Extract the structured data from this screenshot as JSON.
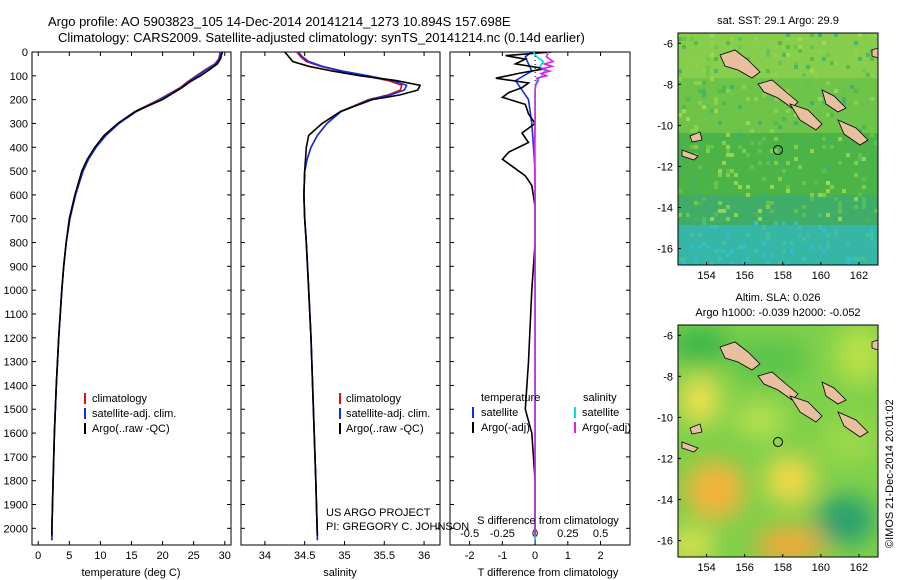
{
  "header": {
    "line1": "Argo profile: AO 5903823_105 14-Dec-2014 20141214_1273 10.894S 157.698E",
    "line2": "Climatology: CARS2009. Satellite-adjusted climatology: synTS_20141214.nc (0.14d earlier)"
  },
  "colors": {
    "clim": "#e01010",
    "sat": "#1030e0",
    "argo": "#000000",
    "sal_sat": "#00e0e0",
    "sal_argo": "#e020e0",
    "coast_fill": "#e8c0a0"
  },
  "chart_data": [
    {
      "id": "temperature",
      "type": "line",
      "xlabel": "temperature (deg C)",
      "ylabel": "depth",
      "xlim": [
        -1,
        31
      ],
      "ylim": [
        2070,
        0
      ],
      "xticks": [
        0,
        5,
        10,
        15,
        20,
        25,
        30
      ],
      "yticks": [
        0,
        100,
        200,
        300,
        400,
        500,
        600,
        700,
        800,
        900,
        1000,
        1100,
        1200,
        1300,
        1400,
        1500,
        1600,
        1700,
        1800,
        1900,
        2000
      ],
      "legend": [
        "climatology",
        "satellite-adj. clim.",
        "Argo(..raw -QC)"
      ],
      "series": [
        {
          "name": "climatology",
          "depth": [
            0,
            10,
            30,
            50,
            75,
            100,
            125,
            150,
            200,
            250,
            300,
            350,
            400,
            450,
            500,
            600,
            700,
            800,
            900,
            1000,
            1200,
            1400,
            1600,
            1800,
            2000,
            2050
          ],
          "values": [
            29.2,
            29.2,
            29.0,
            28.4,
            26.8,
            25.4,
            24.0,
            22.8,
            19.4,
            15.6,
            12.9,
            10.8,
            9.2,
            8.0,
            7.2,
            6.0,
            5.1,
            4.5,
            4.1,
            3.8,
            3.3,
            2.9,
            2.6,
            2.4,
            2.2,
            2.2
          ]
        },
        {
          "name": "satellite-adj. clim.",
          "depth": [
            0,
            10,
            30,
            50,
            75,
            100,
            125,
            150,
            200,
            250,
            300,
            350,
            400,
            450,
            500,
            600,
            700,
            800,
            900,
            1000,
            1200,
            1400,
            1600,
            1800,
            2000,
            2050
          ],
          "values": [
            29.4,
            29.3,
            29.1,
            28.5,
            27.0,
            25.6,
            24.2,
            23.0,
            19.6,
            15.8,
            13.0,
            10.9,
            9.3,
            8.1,
            7.2,
            6.0,
            5.1,
            4.5,
            4.1,
            3.8,
            3.3,
            2.9,
            2.6,
            2.4,
            2.2,
            2.2
          ]
        },
        {
          "name": "Argo(..raw -QC)",
          "depth": [
            0,
            10,
            30,
            50,
            75,
            100,
            125,
            150,
            200,
            250,
            300,
            350,
            400,
            450,
            500,
            600,
            700,
            800,
            900,
            1000,
            1200,
            1400,
            1600,
            1800,
            2000,
            2030
          ],
          "values": [
            29.6,
            29.5,
            29.3,
            28.8,
            27.5,
            26.1,
            24.4,
            23.1,
            20.0,
            15.6,
            12.8,
            10.6,
            9.1,
            7.9,
            7.0,
            5.9,
            5.0,
            4.5,
            4.1,
            3.8,
            3.3,
            2.9,
            2.6,
            2.4,
            2.2,
            2.2
          ]
        }
      ]
    },
    {
      "id": "salinity",
      "type": "line",
      "xlabel": "salinity",
      "xlim": [
        33.7,
        36.2
      ],
      "ylim": [
        2070,
        0
      ],
      "xticks": [
        34,
        34.5,
        35,
        35.5,
        36
      ],
      "legend": [
        "climatology",
        "satellite-adj. clim.",
        "Argo(..raw -QC)"
      ],
      "annotations": [
        "US ARGO PROJECT",
        "PI: GREGORY C. JOHNSON"
      ],
      "series": [
        {
          "name": "climatology",
          "depth": [
            0,
            20,
            40,
            60,
            80,
            100,
            120,
            140,
            160,
            180,
            200,
            250,
            300,
            350,
            400,
            450,
            500,
            600,
            700,
            800,
            1000,
            1200,
            1500,
            1800,
            2050
          ],
          "values": [
            34.4,
            34.45,
            34.52,
            34.7,
            34.95,
            35.25,
            35.55,
            35.72,
            35.7,
            35.55,
            35.3,
            34.95,
            34.78,
            34.66,
            34.58,
            34.53,
            34.5,
            34.49,
            34.5,
            34.52,
            34.55,
            34.58,
            34.61,
            34.64,
            34.66
          ]
        },
        {
          "name": "satellite-adj. clim.",
          "depth": [
            0,
            20,
            40,
            60,
            80,
            100,
            120,
            140,
            160,
            180,
            200,
            250,
            300,
            350,
            400,
            450,
            500,
            600,
            700,
            800,
            1000,
            1200,
            1500,
            1800,
            2050
          ],
          "values": [
            34.42,
            34.47,
            34.55,
            34.72,
            34.98,
            35.3,
            35.6,
            35.78,
            35.75,
            35.58,
            35.32,
            34.96,
            34.78,
            34.66,
            34.58,
            34.53,
            34.5,
            34.49,
            34.5,
            34.52,
            34.55,
            34.58,
            34.61,
            34.64,
            34.66
          ]
        },
        {
          "name": "Argo(..raw -QC)",
          "depth": [
            0,
            20,
            40,
            60,
            80,
            100,
            120,
            140,
            160,
            180,
            200,
            250,
            300,
            350,
            400,
            450,
            500,
            600,
            700,
            800,
            1000,
            1200,
            1500,
            1800,
            2030
          ],
          "values": [
            34.25,
            34.3,
            34.35,
            34.55,
            34.85,
            35.2,
            35.65,
            35.95,
            35.92,
            35.7,
            35.35,
            34.95,
            34.72,
            34.55,
            34.52,
            34.51,
            34.5,
            34.49,
            34.5,
            34.52,
            34.55,
            34.58,
            34.61,
            34.64,
            34.66
          ]
        }
      ]
    },
    {
      "id": "difference",
      "type": "line",
      "xlabel": "T difference from climatology",
      "xlabel2": "S difference from climatology",
      "xlim": [
        -2.6,
        2.9
      ],
      "ylim": [
        2070,
        0
      ],
      "xticks": [
        -2,
        -1,
        0,
        1,
        2
      ],
      "xticks_sal": [
        "-0.5",
        "-0.25",
        "0",
        "0.25",
        "0.5"
      ],
      "legend_title_t": "temperature",
      "legend_title_s": "salinity",
      "legend_t": [
        "satellite",
        "Argo(-adj)"
      ],
      "legend_s": [
        "satellite",
        "Argo(-adj)"
      ],
      "series": [
        {
          "name": "temperature satellite",
          "depth": [
            0,
            20,
            50,
            80,
            120,
            160,
            200,
            300,
            400,
            500,
            600,
            800,
            1000,
            1500,
            2050
          ],
          "values": [
            -0.1,
            -0.3,
            -0.2,
            -0.1,
            -0.6,
            -0.4,
            -0.2,
            -0.1,
            -0.05,
            0,
            0,
            0,
            0,
            0,
            0
          ]
        },
        {
          "name": "temperature Argo(-adj)",
          "depth": [
            0,
            15,
            30,
            50,
            70,
            90,
            110,
            130,
            150,
            170,
            190,
            220,
            260,
            300,
            340,
            380,
            420,
            450,
            480,
            520,
            560,
            650,
            800,
            1000,
            1300,
            1500,
            1600,
            1800,
            2030
          ],
          "values": [
            0.5,
            -0.9,
            -0.3,
            -0.6,
            0.3,
            -0.5,
            -1.2,
            -0.2,
            -0.4,
            -0.8,
            -1.0,
            -0.3,
            -0.2,
            0.0,
            -0.4,
            -0.2,
            -0.8,
            -1.0,
            -0.7,
            -0.3,
            -0.1,
            0.0,
            0.0,
            -0.1,
            -0.2,
            -0.3,
            -0.1,
            0.0,
            0.0
          ]
        },
        {
          "name": "salinity satellite",
          "depth": [
            0,
            20,
            40,
            60,
            80,
            100,
            120,
            140,
            160,
            200,
            250,
            300,
            400,
            500,
            600,
            800,
            1000,
            1500,
            2050
          ],
          "values": [
            -0.05,
            0.05,
            0.25,
            0.15,
            0.3,
            0.2,
            0.05,
            0.02,
            0.0,
            0.0,
            0.0,
            0.0,
            0.0,
            0.0,
            0.0,
            0.0,
            0.0,
            0.0,
            0.0
          ]
        },
        {
          "name": "salinity Argo(-adj)",
          "depth": [
            0,
            20,
            40,
            50,
            60,
            70,
            80,
            90,
            100,
            110,
            120,
            140,
            160,
            200,
            300,
            400,
            500,
            600,
            800,
            1000,
            1500,
            2030
          ],
          "values": [
            0.4,
            0.35,
            0.55,
            0.28,
            0.52,
            0.22,
            0.45,
            0.18,
            0.35,
            0.05,
            0.1,
            0.02,
            0.0,
            0.0,
            0.0,
            -0.02,
            -0.01,
            0.0,
            0.0,
            0.0,
            0.0,
            0.0
          ]
        }
      ]
    },
    {
      "id": "sst_map",
      "type": "heatmap",
      "title": "sat. SST: 29.1  Argo: 29.9",
      "xlim": [
        152.5,
        163
      ],
      "ylim": [
        -16.8,
        -5.5
      ],
      "xticks": [
        154,
        156,
        158,
        160,
        162
      ],
      "yticks": [
        -6,
        -8,
        -10,
        -12,
        -14,
        -16
      ],
      "argo_position": {
        "lon": 157.698,
        "lat": -10.894
      }
    },
    {
      "id": "sla_map",
      "type": "heatmap",
      "title": "Altim. SLA: 0.026",
      "subtitle": "Argo h1000: -0.039 h2000: -0.052",
      "xlim": [
        152.5,
        163
      ],
      "ylim": [
        -16.8,
        -5.5
      ],
      "xticks": [
        154,
        156,
        158,
        160,
        162
      ],
      "yticks": [
        -6,
        -8,
        -10,
        -12,
        -14,
        -16
      ],
      "argo_position": {
        "lon": 157.698,
        "lat": -10.894
      }
    }
  ],
  "credit": "©IMOS 21-Dec-2014 20:01:02"
}
